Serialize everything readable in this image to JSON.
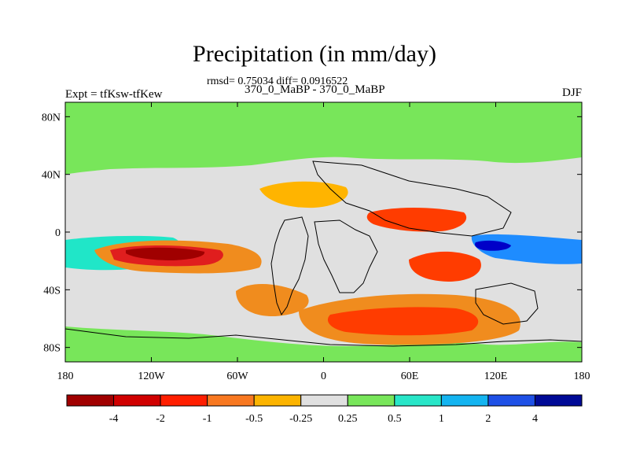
{
  "header": {
    "title": "Precipitation (in mm/day)",
    "stats": "rmsd= 0.75034 diff= 0.0916522",
    "run": "370_0_MaBP - 370_0_MaBP",
    "experiment": "Expt = tfKsw-tfKew",
    "season": "DJF"
  },
  "map": {
    "lon_range": [
      -180,
      180
    ],
    "lat_range": [
      -90,
      90
    ],
    "x_ticks": [
      {
        "value": -180,
        "label": "180"
      },
      {
        "value": -120,
        "label": "120W"
      },
      {
        "value": -60,
        "label": "60W"
      },
      {
        "value": 0,
        "label": "0"
      },
      {
        "value": 60,
        "label": "60E"
      },
      {
        "value": 120,
        "label": "120E"
      },
      {
        "value": 180,
        "label": "180"
      }
    ],
    "y_ticks": [
      {
        "value": 80,
        "label": "80N"
      },
      {
        "value": 40,
        "label": "40N"
      },
      {
        "value": 0,
        "label": "0"
      },
      {
        "value": -40,
        "label": "40S"
      },
      {
        "value": -80,
        "label": "80S"
      }
    ],
    "background_color": "#e0e0e0",
    "regions": [
      {
        "name": "north-band",
        "color": "#78e65a"
      },
      {
        "name": "south-band",
        "color": "#78e65a"
      },
      {
        "name": "tropical-pacific-wet",
        "color": "#20e6c8"
      },
      {
        "name": "east-pacific-dry",
        "color": "#f08c1e"
      },
      {
        "name": "east-pacific-dry-core",
        "color": "#e01e1e"
      },
      {
        "name": "east-pacific-dry-peak",
        "color": "#a00000"
      },
      {
        "name": "south-atlantic-dry",
        "color": "#f08c1e"
      },
      {
        "name": "south-ocean-dry",
        "color": "#f08c1e"
      },
      {
        "name": "south-ocean-dry-core",
        "color": "#ff3c00"
      },
      {
        "name": "indian-dry",
        "color": "#ff3c00"
      },
      {
        "name": "indian-wet",
        "color": "#1e8cff"
      },
      {
        "name": "maritime-wet",
        "color": "#0000c8"
      },
      {
        "name": "mid-atlantic-dry",
        "color": "#ffb400"
      },
      {
        "name": "asia-dry",
        "color": "#ff3c00"
      }
    ]
  },
  "colorbar": {
    "colors": [
      "#a00000",
      "#d00000",
      "#ff1e00",
      "#f87820",
      "#fcb400",
      "#e0e0e0",
      "#78e65a",
      "#28e6c8",
      "#14b4f0",
      "#1e50e6",
      "#000a96"
    ],
    "labels": [
      "-4",
      "-2",
      "-1",
      "-0.5",
      "-0.25",
      "0.25",
      "0.5",
      "1",
      "2",
      "4"
    ]
  }
}
